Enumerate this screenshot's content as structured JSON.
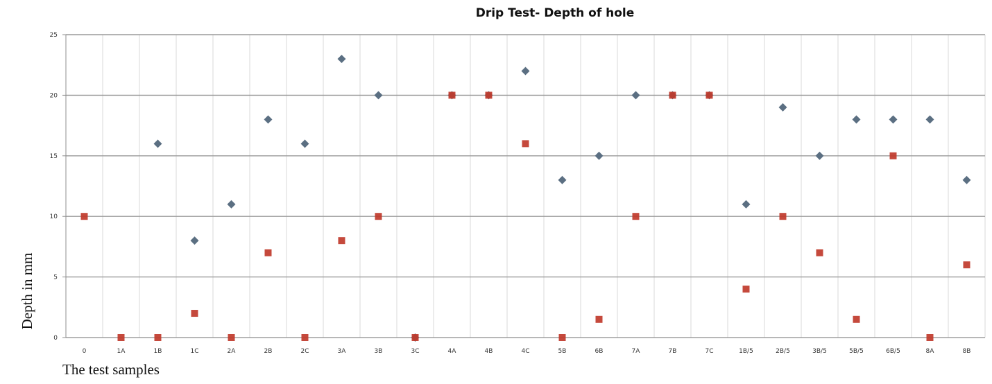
{
  "chart_data": {
    "type": "scatter",
    "title": "Drip Test- Depth of hole",
    "xlabel": "The test samples",
    "ylabel": "Depth in mm",
    "categories": [
      "0",
      "1A",
      "1B",
      "1C",
      "2A",
      "2B",
      "2C",
      "3A",
      "3B",
      "3C",
      "4A",
      "4B",
      "4C",
      "5B",
      "6B",
      "7A",
      "7B",
      "7C",
      "1B/5",
      "2B/5",
      "3B/5",
      "5B/5",
      "6B/5",
      "8A",
      "8B"
    ],
    "ylim": [
      0,
      25
    ],
    "yticks": [
      0,
      5,
      10,
      15,
      20,
      25
    ],
    "grid": true,
    "legend": "none",
    "series": [
      {
        "color": "#5b6f82",
        "marker": "diamond",
        "values": [
          null,
          null,
          16,
          8,
          11,
          18,
          16,
          23,
          20,
          0,
          20,
          20,
          22,
          13,
          15,
          20,
          20,
          20,
          11,
          19,
          15,
          18,
          18,
          18,
          13
        ]
      },
      {
        "color": "#c0392b",
        "marker": "square",
        "values": [
          10,
          0,
          0,
          2,
          0,
          7,
          0,
          8,
          10,
          0,
          20,
          20,
          16,
          0,
          1.5,
          10,
          20,
          20,
          4,
          10,
          7,
          1.5,
          15,
          0,
          6
        ]
      }
    ]
  }
}
